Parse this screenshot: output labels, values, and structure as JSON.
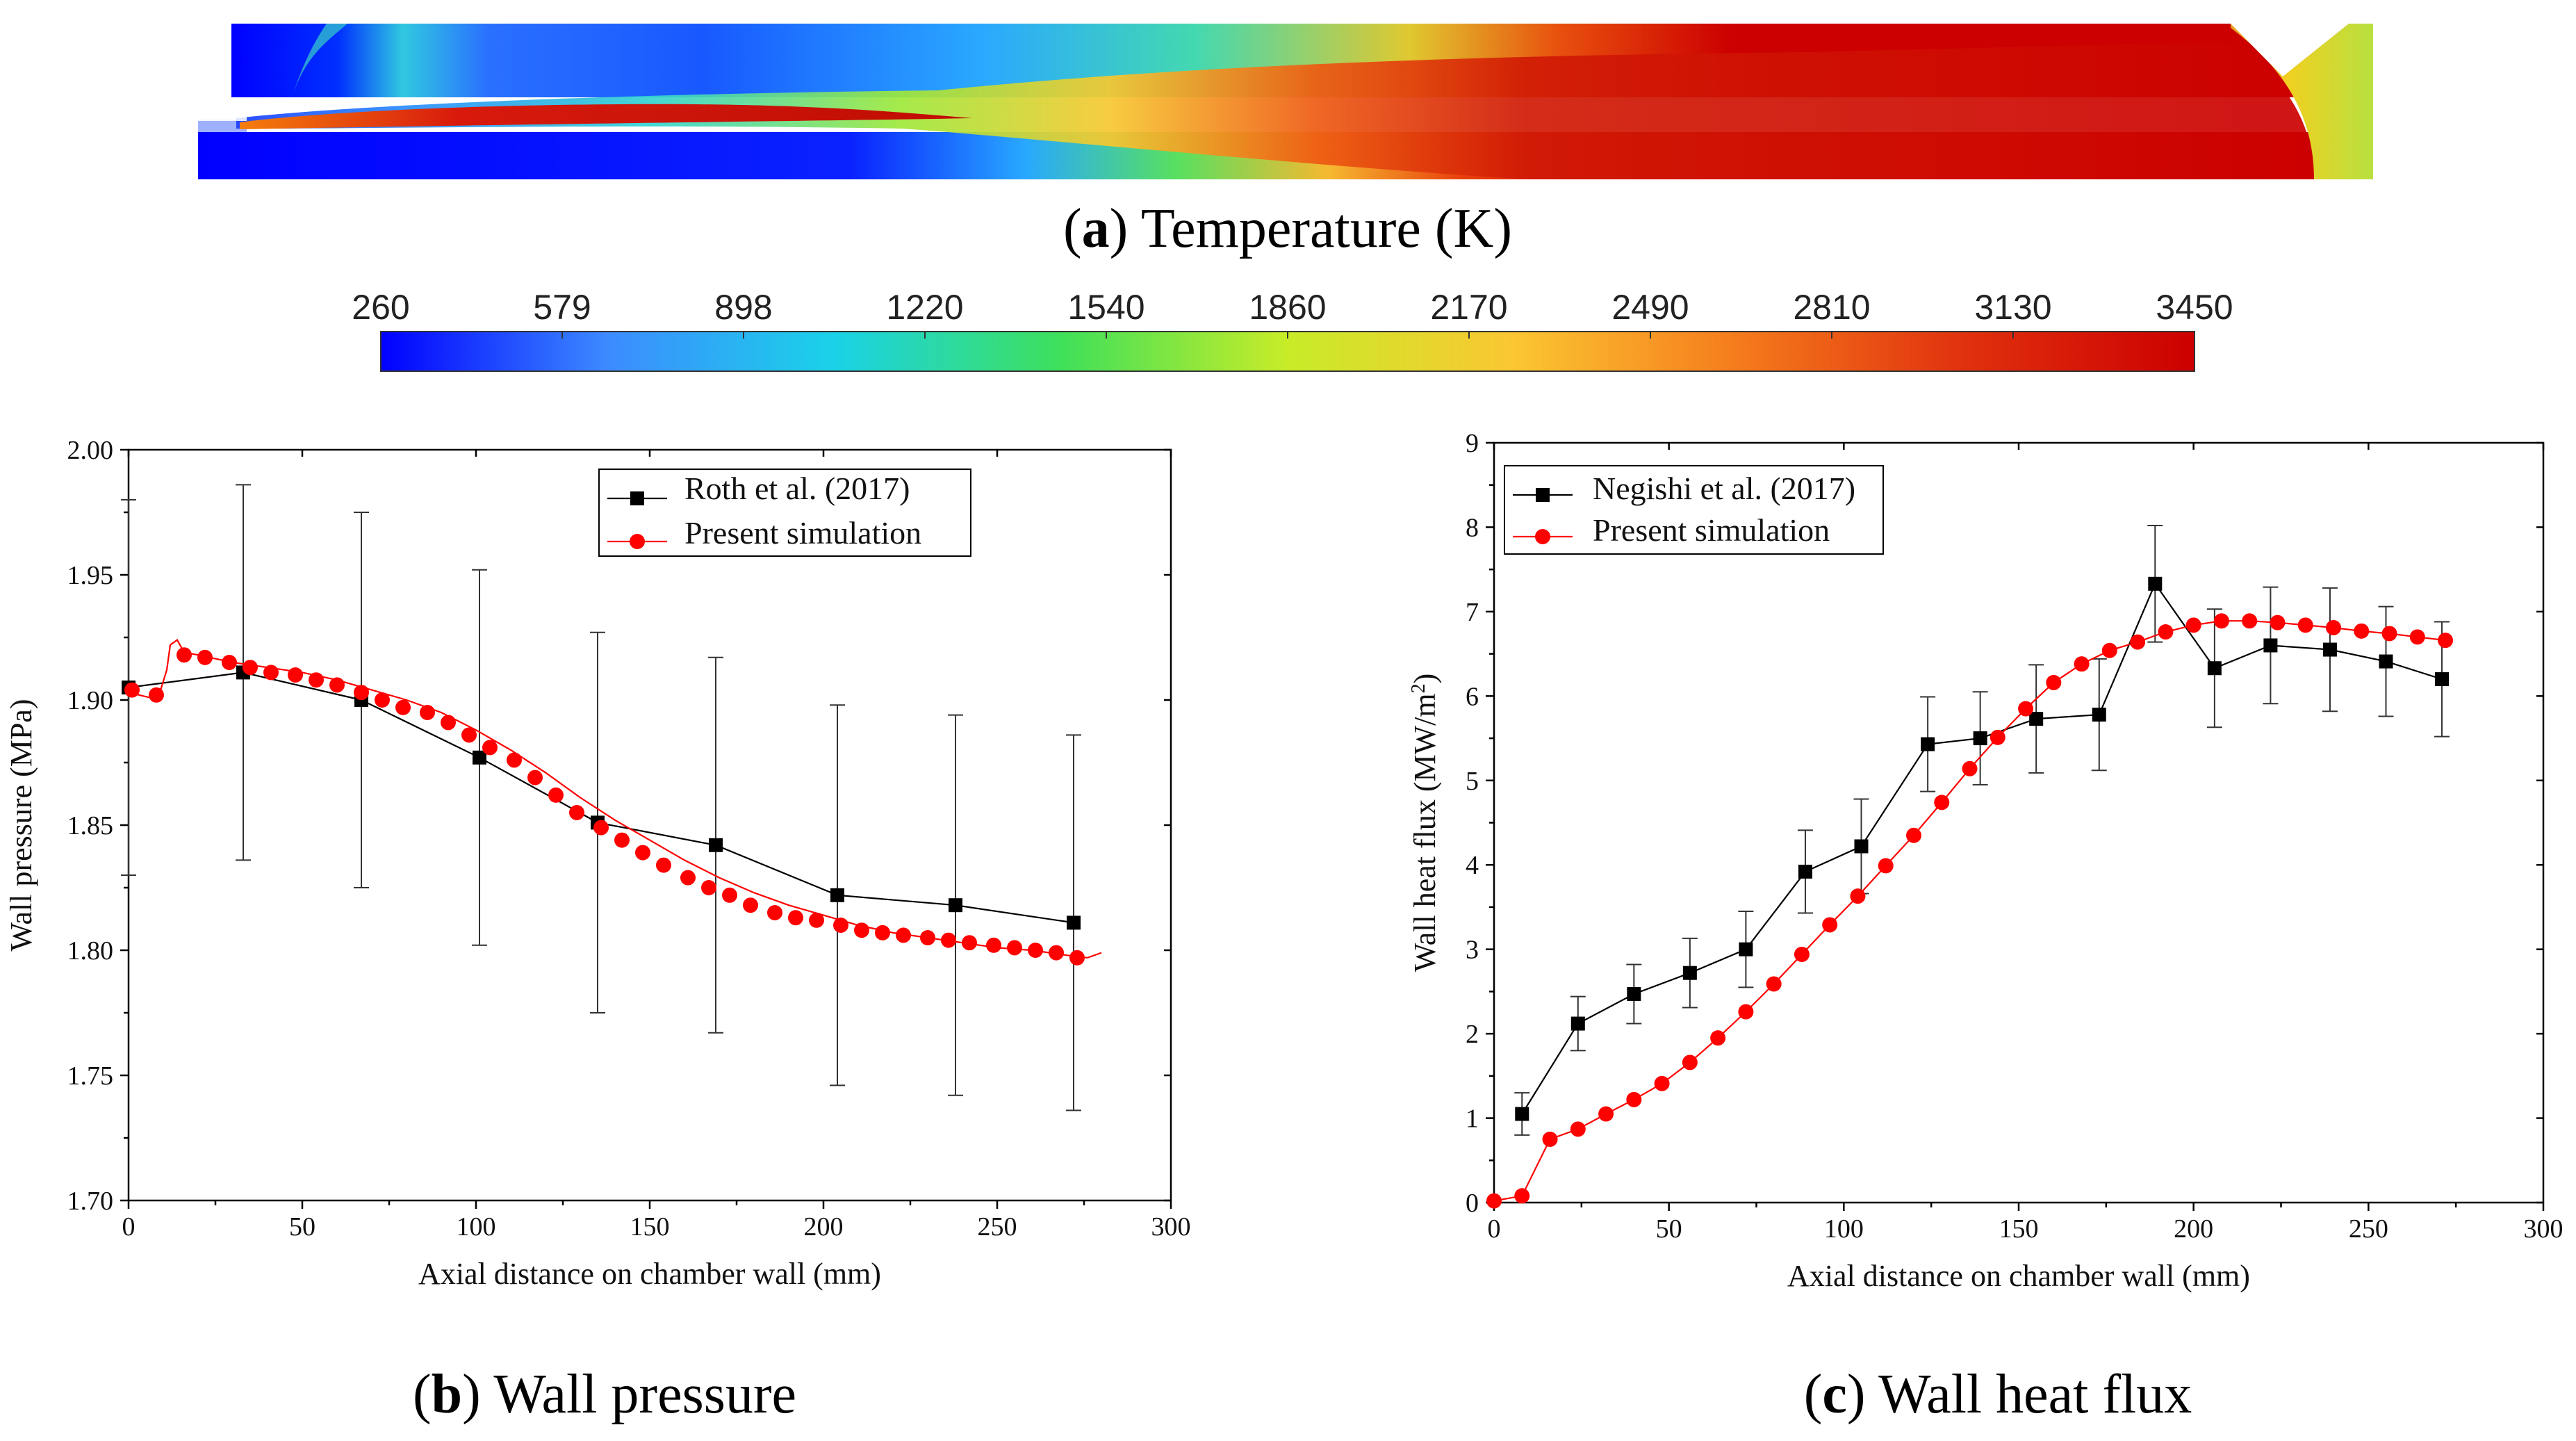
{
  "panel_a": {
    "caption_letter": "a",
    "caption_text": "Temperature (K)",
    "colorbar_ticks": [
      "260",
      "579",
      "898",
      "1220",
      "1540",
      "1860",
      "2170",
      "2490",
      "2810",
      "3130",
      "3450"
    ],
    "colorbar_range": [
      260,
      3450
    ],
    "colorbar_colors": [
      "#0000ff",
      "#3d8bff",
      "#1ad2e8",
      "#3ee05a",
      "#c8ec28",
      "#fbc632",
      "#f57a1c",
      "#e0300e",
      "#cc0000"
    ]
  },
  "panel_b": {
    "caption_letter": "b",
    "caption_text": "Wall pressure"
  },
  "panel_c": {
    "caption_letter": "c",
    "caption_text": "Wall heat flux"
  },
  "chart_data": [
    {
      "id": "wall-pressure",
      "type": "line",
      "title": "",
      "xlabel": "Axial distance on chamber wall (mm)",
      "ylabel": "Wall pressure (MPa)",
      "xlim": [
        0,
        300
      ],
      "ylim": [
        1.7,
        2.0
      ],
      "xticks": [
        0,
        50,
        100,
        150,
        200,
        250,
        300
      ],
      "yticks": [
        1.7,
        1.75,
        1.8,
        1.85,
        1.9,
        1.95,
        2.0
      ],
      "xtick_labels": [
        "0",
        "50",
        "100",
        "150",
        "200",
        "250",
        "300"
      ],
      "ytick_labels": [
        "1.70",
        "1.75",
        "1.80",
        "1.85",
        "1.90",
        "1.95",
        "2.00"
      ],
      "legend_position": "top-right",
      "series": [
        {
          "name": "Roth et al. (2017)",
          "marker": "square",
          "color": "#000000",
          "x": [
            0,
            33,
            67,
            101,
            135,
            169,
            204,
            238,
            272
          ],
          "y": [
            1.905,
            1.911,
            1.9,
            1.877,
            1.851,
            1.842,
            1.822,
            1.818,
            1.811
          ],
          "err": [
            0.075,
            0.075,
            0.075,
            0.075,
            0.076,
            0.075,
            0.076,
            0.076,
            0.075
          ]
        },
        {
          "name": "Present simulation",
          "marker": "circle",
          "color": "#ff0000",
          "x": [
            1,
            8,
            16,
            22,
            29,
            35,
            41,
            48,
            54,
            60,
            67,
            73,
            79,
            86,
            92,
            98,
            104,
            111,
            117,
            123,
            129,
            136,
            142,
            148,
            154,
            161,
            167,
            173,
            179,
            186,
            192,
            198,
            205,
            211,
            217,
            223,
            230,
            236,
            242,
            249,
            255,
            261,
            267,
            273
          ],
          "y": [
            1.904,
            1.902,
            1.918,
            1.917,
            1.915,
            1.913,
            1.911,
            1.91,
            1.908,
            1.906,
            1.903,
            1.9,
            1.897,
            1.895,
            1.891,
            1.886,
            1.881,
            1.876,
            1.869,
            1.862,
            1.855,
            1.849,
            1.844,
            1.839,
            1.834,
            1.829,
            1.825,
            1.822,
            1.818,
            1.815,
            1.813,
            1.812,
            1.81,
            1.808,
            1.807,
            1.806,
            1.805,
            1.804,
            1.803,
            1.802,
            1.801,
            1.8,
            1.799,
            1.797
          ],
          "line_x": [
            0,
            3,
            6,
            9,
            11,
            12,
            14,
            16,
            20,
            30,
            40,
            50,
            60,
            70,
            80,
            90,
            100,
            110,
            120,
            130,
            140,
            150,
            160,
            170,
            180,
            190,
            200,
            210,
            220,
            230,
            240,
            250,
            260,
            270,
            276,
            280
          ],
          "line_y": [
            1.904,
            1.902,
            1.901,
            1.903,
            1.912,
            1.922,
            1.924,
            1.919,
            1.918,
            1.915,
            1.913,
            1.911,
            1.908,
            1.904,
            1.9,
            1.895,
            1.888,
            1.88,
            1.871,
            1.861,
            1.852,
            1.844,
            1.836,
            1.829,
            1.823,
            1.818,
            1.814,
            1.81,
            1.807,
            1.805,
            1.803,
            1.801,
            1.8,
            1.798,
            1.797,
            1.799
          ]
        }
      ]
    },
    {
      "id": "wall-heat-flux",
      "type": "line",
      "title": "",
      "xlabel": "Axial distance on chamber wall (mm)",
      "ylabel_main": "Wall heat flux (MW/m",
      "ylabel_sup": "2",
      "ylabel_end": ")",
      "xlim": [
        0,
        300
      ],
      "ylim": [
        0,
        9
      ],
      "xticks": [
        0,
        50,
        100,
        150,
        200,
        250,
        300
      ],
      "yticks": [
        0,
        1,
        2,
        3,
        4,
        5,
        6,
        7,
        8,
        9
      ],
      "xtick_labels": [
        "0",
        "50",
        "100",
        "150",
        "200",
        "250",
        "300"
      ],
      "ytick_labels": [
        "0",
        "1",
        "2",
        "3",
        "4",
        "5",
        "6",
        "7",
        "8",
        "9"
      ],
      "legend_position": "top-left",
      "series": [
        {
          "name": "Negishi et al. (2017)",
          "marker": "square",
          "color": "#000000",
          "x": [
            8,
            24,
            40,
            56,
            72,
            89,
            105,
            124,
            139,
            155,
            173,
            189,
            206,
            222,
            239,
            255,
            271
          ],
          "y": [
            1.05,
            2.12,
            2.47,
            2.72,
            3.0,
            3.92,
            4.22,
            5.43,
            5.5,
            5.73,
            5.78,
            7.33,
            6.33,
            6.6,
            6.55,
            6.41,
            6.2
          ],
          "err": [
            0.25,
            0.32,
            0.35,
            0.41,
            0.45,
            0.49,
            0.56,
            0.56,
            0.55,
            0.64,
            0.66,
            0.69,
            0.7,
            0.69,
            0.73,
            0.65,
            0.68
          ]
        },
        {
          "name": "Present simulation",
          "marker": "circle",
          "color": "#ff0000",
          "x": [
            0,
            8,
            16,
            24,
            32,
            40,
            48,
            56,
            64,
            72,
            80,
            88,
            96,
            104,
            112,
            120,
            128,
            136,
            144,
            152,
            160,
            168,
            176,
            184,
            192,
            200,
            208,
            216,
            224,
            232,
            240,
            248,
            256,
            264,
            272
          ],
          "y": [
            0.02,
            0.08,
            0.75,
            0.87,
            1.05,
            1.22,
            1.41,
            1.66,
            1.95,
            2.26,
            2.59,
            2.94,
            3.29,
            3.63,
            3.99,
            4.35,
            4.74,
            5.14,
            5.51,
            5.85,
            6.16,
            6.38,
            6.54,
            6.64,
            6.76,
            6.84,
            6.89,
            6.89,
            6.87,
            6.84,
            6.81,
            6.77,
            6.74,
            6.7,
            6.66
          ]
        }
      ]
    }
  ]
}
